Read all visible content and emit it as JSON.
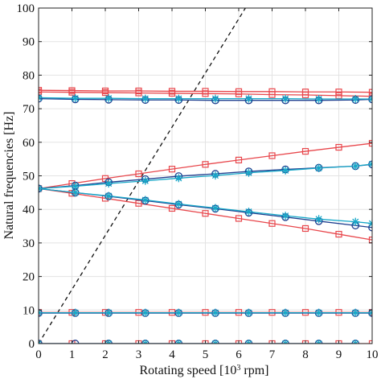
{
  "chart_data": {
    "type": "line",
    "xlabel_prefix": "Rotating speed [10",
    "xlabel_sup": "3",
    "xlabel_suffix": " rpm]",
    "ylabel": "Natural frequencies [Hz]",
    "xlim": [
      0,
      10
    ],
    "ylim": [
      0,
      100
    ],
    "xticks": [
      0,
      1,
      2,
      3,
      4,
      5,
      6,
      7,
      8,
      9,
      10
    ],
    "yticks": [
      0,
      10,
      20,
      30,
      40,
      50,
      60,
      70,
      80,
      90,
      100
    ],
    "grid": true,
    "colors": {
      "red": "#e8474c",
      "navy": "#1f3f8f",
      "cyan": "#17a8c8",
      "reference": "#111111"
    },
    "reference_line": {
      "x": [
        0,
        6.2
      ],
      "y": [
        0,
        100
      ],
      "style": "dashed"
    },
    "series": [
      {
        "color": "red",
        "marker": "square",
        "x": [
          0,
          1,
          2,
          3,
          4,
          5,
          6,
          7,
          8,
          9,
          10
        ],
        "y": [
          0,
          0,
          0,
          0,
          0,
          0,
          0,
          0,
          0,
          0,
          0
        ]
      },
      {
        "color": "navy",
        "marker": "circle",
        "x": [
          0,
          1.1,
          2.1,
          3.2,
          4.2,
          5.3,
          6.3,
          7.4,
          8.4,
          9.5
        ],
        "y": [
          0,
          0,
          0,
          0,
          0,
          0,
          0,
          0,
          0,
          0
        ]
      },
      {
        "color": "cyan",
        "marker": "asterisk",
        "x": [
          0,
          2.1,
          3.2,
          4.2,
          5.3,
          6.3,
          7.4,
          8.4,
          9.5
        ],
        "y": [
          0,
          0,
          0,
          0,
          0,
          0,
          0,
          0,
          0
        ]
      },
      {
        "color": "red",
        "marker": "square",
        "x": [
          0,
          1,
          2,
          3,
          4,
          5,
          6,
          7,
          8,
          9,
          10
        ],
        "y": [
          9.3,
          9.3,
          9.3,
          9.3,
          9.3,
          9.3,
          9.3,
          9.3,
          9.3,
          9.3,
          9.3
        ]
      },
      {
        "color": "navy",
        "marker": "circle",
        "x": [
          0,
          1.1,
          2.1,
          3.2,
          4.2,
          5.3,
          6.3,
          7.4,
          8.4,
          9.5,
          10
        ],
        "y": [
          9.1,
          9.1,
          9.1,
          9.1,
          9.1,
          9.1,
          9.1,
          9.1,
          9.1,
          9.1,
          9.1
        ]
      },
      {
        "color": "cyan",
        "marker": "asterisk",
        "x": [
          0,
          1.1,
          2.1,
          3.2,
          4.2,
          5.3,
          6.3,
          7.4,
          8.4,
          9.5,
          10
        ],
        "y": [
          9.2,
          9.2,
          9.2,
          9.2,
          9.2,
          9.2,
          9.2,
          9.2,
          9.2,
          9.2,
          9.2
        ]
      },
      {
        "color": "red",
        "marker": "square",
        "x": [
          0,
          1,
          2,
          3,
          4,
          5,
          6,
          7,
          8,
          9,
          10
        ],
        "y": [
          75.5,
          75.4,
          75.3,
          75.3,
          75.2,
          75.2,
          75.1,
          75.1,
          75.0,
          75.0,
          74.9
        ]
      },
      {
        "color": "red",
        "marker": "square",
        "x": [
          0,
          1,
          2,
          3,
          4,
          5,
          6,
          7,
          8,
          9,
          10
        ],
        "y": [
          75.0,
          74.9,
          74.8,
          74.7,
          74.6,
          74.5,
          74.4,
          74.2,
          74.1,
          73.9,
          73.7
        ]
      },
      {
        "color": "navy",
        "marker": "circle",
        "x": [
          0,
          1.1,
          2.1,
          3.2,
          4.2,
          5.3,
          6.3,
          7.4,
          8.4,
          9.5,
          10
        ],
        "y": [
          73.0,
          72.8,
          72.7,
          72.6,
          72.6,
          72.5,
          72.5,
          72.5,
          72.5,
          72.6,
          72.8
        ]
      },
      {
        "color": "cyan",
        "marker": "asterisk",
        "x": [
          0,
          1.1,
          2.1,
          3.2,
          4.2,
          5.3,
          6.3,
          7.4,
          8.4,
          9.5,
          10
        ],
        "y": [
          73.3,
          73.1,
          73.1,
          73.0,
          73.0,
          73.0,
          73.0,
          73.0,
          72.9,
          72.9,
          72.9
        ]
      },
      {
        "color": "red",
        "marker": "square",
        "x": [
          0,
          1,
          2,
          3,
          4,
          5,
          6,
          7,
          8,
          9,
          10
        ],
        "y": [
          46.2,
          47.7,
          49.2,
          50.6,
          52.0,
          53.4,
          54.7,
          56.0,
          57.3,
          58.5,
          59.7
        ]
      },
      {
        "color": "red",
        "marker": "square",
        "x": [
          0,
          1,
          2,
          3,
          4,
          5,
          6,
          7,
          8,
          9,
          10
        ],
        "y": [
          46.2,
          44.8,
          43.3,
          41.8,
          40.3,
          38.8,
          37.3,
          35.8,
          34.3,
          32.6,
          30.9
        ]
      },
      {
        "color": "navy",
        "marker": "circle",
        "x": [
          0,
          1.1,
          2.1,
          3.2,
          4.2,
          5.3,
          6.3,
          7.4,
          8.4,
          9.5,
          10
        ],
        "y": [
          46.2,
          47.1,
          48.1,
          49.0,
          49.9,
          50.6,
          51.3,
          51.9,
          52.4,
          52.9,
          53.4
        ]
      },
      {
        "color": "navy",
        "marker": "circle",
        "x": [
          0,
          1.1,
          2.1,
          3.2,
          4.2,
          5.3,
          6.3,
          7.4,
          8.4,
          9.5,
          10
        ],
        "y": [
          46.2,
          45.0,
          43.9,
          42.6,
          41.4,
          40.2,
          39.0,
          37.7,
          36.5,
          35.2,
          34.6
        ]
      },
      {
        "color": "cyan",
        "marker": "asterisk",
        "x": [
          0,
          1.1,
          2.1,
          3.2,
          4.2,
          5.3,
          6.3,
          7.4,
          8.4,
          9.5,
          10
        ],
        "y": [
          46.2,
          46.9,
          47.7,
          48.5,
          49.3,
          50.1,
          50.9,
          51.6,
          52.3,
          52.9,
          53.5
        ]
      },
      {
        "color": "cyan",
        "marker": "asterisk",
        "x": [
          0,
          1.1,
          2.1,
          3.2,
          4.2,
          5.3,
          6.3,
          7.4,
          8.4,
          9.5,
          10
        ],
        "y": [
          46.2,
          45.0,
          44.0,
          42.8,
          41.6,
          40.4,
          39.3,
          38.1,
          37.1,
          36.3,
          35.8
        ]
      }
    ]
  }
}
